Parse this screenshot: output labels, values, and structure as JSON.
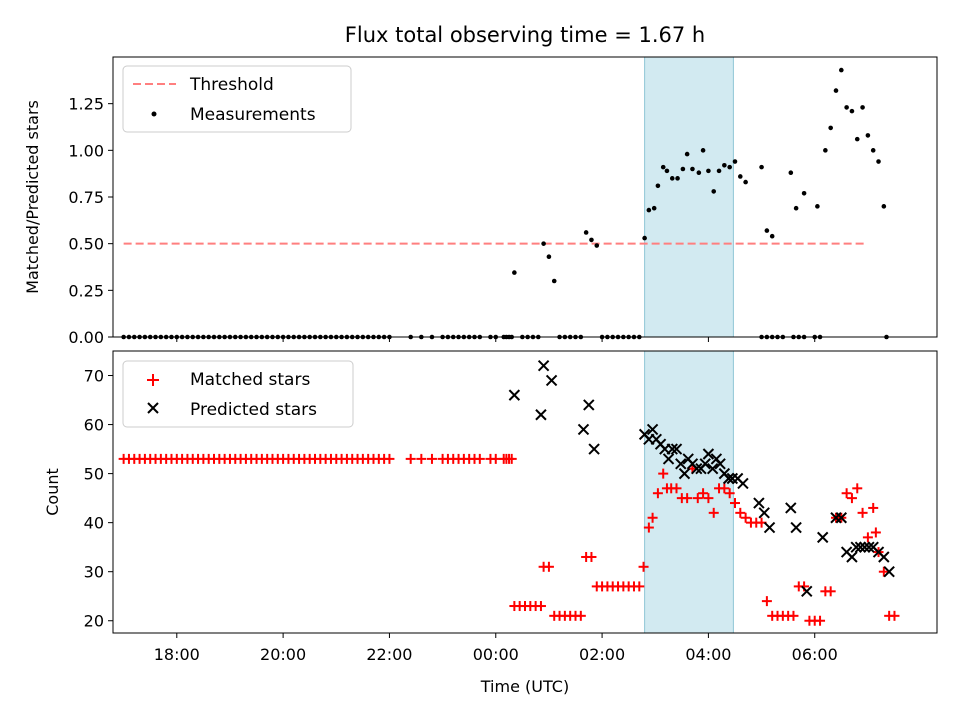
{
  "chart_data": [
    {
      "type": "scatter",
      "title": "Flux total observing time = 1.67 h",
      "xlabel": "",
      "ylabel": "Matched/Predicted stars",
      "xlim": [
        -7.2,
        8.3
      ],
      "ylim": [
        0,
        1.5
      ],
      "yticks": [
        "0.00",
        "0.25",
        "0.50",
        "0.75",
        "1.00",
        "1.25"
      ],
      "shaded_span": [
        2.8,
        4.47
      ],
      "shaded_color": "#add8e6",
      "legend_position": "top-left",
      "legend": [
        "Threshold",
        "Measurements"
      ],
      "threshold": {
        "name": "Threshold",
        "y": 0.5,
        "x": [
          -7.0,
          6.93
        ],
        "color": "#ff7f7f"
      },
      "series": [
        {
          "name": "Measurements",
          "color": "#000000",
          "points": [
            [
              0.35,
              0.345
            ],
            [
              0.9,
              0.5
            ],
            [
              1.0,
              0.43
            ],
            [
              1.1,
              0.3
            ],
            [
              1.7,
              0.56
            ],
            [
              1.8,
              0.52
            ],
            [
              1.9,
              0.49
            ],
            [
              2.8,
              0.53
            ],
            [
              2.88,
              0.68
            ],
            [
              2.98,
              0.69
            ],
            [
              3.05,
              0.81
            ],
            [
              3.15,
              0.91
            ],
            [
              3.22,
              0.89
            ],
            [
              3.32,
              0.85
            ],
            [
              3.42,
              0.85
            ],
            [
              3.52,
              0.9
            ],
            [
              3.6,
              0.98
            ],
            [
              3.7,
              0.9
            ],
            [
              3.82,
              0.88
            ],
            [
              3.9,
              1.0
            ],
            [
              4.0,
              0.89
            ],
            [
              4.1,
              0.78
            ],
            [
              4.2,
              0.89
            ],
            [
              4.3,
              0.92
            ],
            [
              4.4,
              0.91
            ],
            [
              4.5,
              0.94
            ],
            [
              4.6,
              0.86
            ],
            [
              4.7,
              0.83
            ],
            [
              5.0,
              0.91
            ],
            [
              5.1,
              0.57
            ],
            [
              5.2,
              0.54
            ],
            [
              5.55,
              0.88
            ],
            [
              5.65,
              0.69
            ],
            [
              5.8,
              0.77
            ],
            [
              6.05,
              0.7
            ],
            [
              6.2,
              1.0
            ],
            [
              6.3,
              1.12
            ],
            [
              6.4,
              1.32
            ],
            [
              6.5,
              1.43
            ],
            [
              6.6,
              1.23
            ],
            [
              6.7,
              1.21
            ],
            [
              6.8,
              1.06
            ],
            [
              6.9,
              1.23
            ],
            [
              7.0,
              1.08
            ],
            [
              7.1,
              1.0
            ],
            [
              7.2,
              0.94
            ],
            [
              7.3,
              0.7
            ]
          ],
          "zeros": {
            "y": 0,
            "x": [
              -7.0,
              -6.9,
              -6.8,
              -6.7,
              -6.6,
              -6.5,
              -6.4,
              -6.3,
              -6.2,
              -6.1,
              -6.0,
              -5.9,
              -5.8,
              -5.7,
              -5.6,
              -5.5,
              -5.4,
              -5.3,
              -5.2,
              -5.1,
              -5.0,
              -4.9,
              -4.8,
              -4.7,
              -4.6,
              -4.5,
              -4.4,
              -4.3,
              -4.2,
              -4.1,
              -4.0,
              -3.9,
              -3.8,
              -3.7,
              -3.6,
              -3.5,
              -3.4,
              -3.3,
              -3.2,
              -3.1,
              -3.0,
              -2.9,
              -2.8,
              -2.7,
              -2.6,
              -2.5,
              -2.4,
              -2.3,
              -2.2,
              -2.1,
              -2.0,
              -1.6,
              -1.4,
              -1.2,
              -1.0,
              -0.9,
              -0.8,
              -0.7,
              -0.6,
              -0.5,
              -0.4,
              -0.3,
              -0.1,
              0.0,
              0.15,
              0.2,
              0.25,
              0.3,
              0.5,
              0.6,
              0.7,
              0.8,
              1.2,
              1.3,
              1.4,
              1.5,
              1.6,
              2.0,
              2.1,
              2.2,
              2.3,
              2.4,
              2.5,
              2.6,
              2.7,
              5.0,
              5.1,
              5.2,
              5.3,
              5.4,
              5.6,
              5.7,
              5.8,
              6.0,
              6.1,
              7.35
            ]
          }
        }
      ]
    },
    {
      "type": "scatter",
      "title": "",
      "xlabel": "Time (UTC)",
      "ylabel": "Count",
      "xlim": [
        -7.2,
        8.3
      ],
      "ylim": [
        17.5,
        75
      ],
      "yticks": [
        "20",
        "30",
        "40",
        "50",
        "60",
        "70"
      ],
      "xticks": [
        {
          "v": -6,
          "label": "18:00"
        },
        {
          "v": -4,
          "label": "20:00"
        },
        {
          "v": -2,
          "label": "22:00"
        },
        {
          "v": 0,
          "label": "00:00"
        },
        {
          "v": 2,
          "label": "02:00"
        },
        {
          "v": 4,
          "label": "04:00"
        },
        {
          "v": 6,
          "label": "06:00"
        }
      ],
      "shaded_span": [
        2.8,
        4.47
      ],
      "shaded_color": "#add8e6",
      "legend_position": "top-left",
      "legend": [
        "Matched stars",
        "Predicted stars"
      ],
      "series": [
        {
          "name": "Matched stars",
          "marker": "plus",
          "color": "#ff0000",
          "points_constant": {
            "y": 53,
            "x": [
              -7.0,
              -6.9,
              -6.8,
              -6.7,
              -6.6,
              -6.5,
              -6.4,
              -6.3,
              -6.2,
              -6.1,
              -6.0,
              -5.9,
              -5.8,
              -5.7,
              -5.6,
              -5.5,
              -5.4,
              -5.3,
              -5.2,
              -5.1,
              -5.0,
              -4.9,
              -4.8,
              -4.7,
              -4.6,
              -4.5,
              -4.4,
              -4.3,
              -4.2,
              -4.1,
              -4.0,
              -3.9,
              -3.8,
              -3.7,
              -3.6,
              -3.5,
              -3.4,
              -3.3,
              -3.2,
              -3.1,
              -3.0,
              -2.9,
              -2.8,
              -2.7,
              -2.6,
              -2.5,
              -2.4,
              -2.3,
              -2.2,
              -2.1,
              -2.0,
              -1.6,
              -1.4,
              -1.2,
              -1.0,
              -0.9,
              -0.8,
              -0.7,
              -0.6,
              -0.5,
              -0.4,
              -0.3,
              -0.1,
              0.0,
              0.15,
              0.2,
              0.25,
              0.3
            ]
          },
          "points": [
            [
              0.35,
              23
            ],
            [
              0.45,
              23
            ],
            [
              0.55,
              23
            ],
            [
              0.65,
              23
            ],
            [
              0.75,
              23
            ],
            [
              0.85,
              23
            ],
            [
              0.9,
              31
            ],
            [
              1.0,
              31
            ],
            [
              1.1,
              21
            ],
            [
              1.2,
              21
            ],
            [
              1.3,
              21
            ],
            [
              1.4,
              21
            ],
            [
              1.5,
              21
            ],
            [
              1.6,
              21
            ],
            [
              1.7,
              33
            ],
            [
              1.8,
              33
            ],
            [
              1.9,
              27
            ],
            [
              2.0,
              27
            ],
            [
              2.1,
              27
            ],
            [
              2.2,
              27
            ],
            [
              2.3,
              27
            ],
            [
              2.4,
              27
            ],
            [
              2.5,
              27
            ],
            [
              2.6,
              27
            ],
            [
              2.7,
              27
            ],
            [
              2.78,
              31
            ],
            [
              2.88,
              39
            ],
            [
              2.95,
              41
            ],
            [
              3.05,
              46
            ],
            [
              3.15,
              50
            ],
            [
              3.22,
              47
            ],
            [
              3.3,
              47
            ],
            [
              3.4,
              47
            ],
            [
              3.5,
              45
            ],
            [
              3.6,
              45
            ],
            [
              3.7,
              51
            ],
            [
              3.8,
              45
            ],
            [
              3.9,
              46
            ],
            [
              4.0,
              45
            ],
            [
              4.1,
              42
            ],
            [
              4.2,
              47
            ],
            [
              4.3,
              47
            ],
            [
              4.4,
              46
            ],
            [
              4.5,
              44
            ],
            [
              4.6,
              42
            ],
            [
              4.7,
              41
            ],
            [
              4.8,
              40
            ],
            [
              4.9,
              40
            ],
            [
              5.0,
              40
            ],
            [
              5.1,
              24
            ],
            [
              5.2,
              21
            ],
            [
              5.3,
              21
            ],
            [
              5.4,
              21
            ],
            [
              5.5,
              21
            ],
            [
              5.6,
              21
            ],
            [
              5.7,
              27
            ],
            [
              5.8,
              27
            ],
            [
              5.9,
              20
            ],
            [
              6.0,
              20
            ],
            [
              6.1,
              20
            ],
            [
              6.2,
              26
            ],
            [
              6.3,
              26
            ],
            [
              6.4,
              41
            ],
            [
              6.5,
              41
            ],
            [
              6.6,
              46
            ],
            [
              6.7,
              45
            ],
            [
              6.8,
              47
            ],
            [
              6.9,
              42
            ],
            [
              7.0,
              37
            ],
            [
              7.1,
              43
            ],
            [
              7.15,
              38
            ],
            [
              7.2,
              34
            ],
            [
              7.3,
              30
            ],
            [
              7.4,
              21
            ],
            [
              7.5,
              21
            ]
          ]
        },
        {
          "name": "Predicted stars",
          "marker": "x",
          "color": "#000000",
          "points": [
            [
              0.35,
              66
            ],
            [
              0.85,
              62
            ],
            [
              0.9,
              72
            ],
            [
              1.05,
              69
            ],
            [
              1.65,
              59
            ],
            [
              1.75,
              64
            ],
            [
              1.85,
              55
            ],
            [
              2.8,
              58
            ],
            [
              2.88,
              57
            ],
            [
              2.95,
              59
            ],
            [
              3.02,
              57
            ],
            [
              3.1,
              56
            ],
            [
              3.18,
              55
            ],
            [
              3.25,
              53
            ],
            [
              3.32,
              55
            ],
            [
              3.4,
              55
            ],
            [
              3.48,
              52
            ],
            [
              3.55,
              50
            ],
            [
              3.62,
              53
            ],
            [
              3.7,
              52
            ],
            [
              3.78,
              51
            ],
            [
              3.86,
              51
            ],
            [
              3.94,
              52
            ],
            [
              4.0,
              54
            ],
            [
              4.08,
              51
            ],
            [
              4.15,
              53
            ],
            [
              4.22,
              52
            ],
            [
              4.3,
              50
            ],
            [
              4.38,
              49
            ],
            [
              4.45,
              49
            ],
            [
              4.55,
              49
            ],
            [
              4.65,
              48
            ],
            [
              4.95,
              44
            ],
            [
              5.05,
              42
            ],
            [
              5.15,
              39
            ],
            [
              5.55,
              43
            ],
            [
              5.65,
              39
            ],
            [
              5.85,
              26
            ],
            [
              6.15,
              37
            ],
            [
              6.4,
              41
            ],
            [
              6.5,
              41
            ],
            [
              6.6,
              34
            ],
            [
              6.7,
              33
            ],
            [
              6.78,
              35
            ],
            [
              6.86,
              35
            ],
            [
              6.94,
              35
            ],
            [
              7.02,
              35
            ],
            [
              7.1,
              35
            ],
            [
              7.2,
              34
            ],
            [
              7.3,
              33
            ],
            [
              7.4,
              30
            ]
          ]
        }
      ]
    }
  ]
}
